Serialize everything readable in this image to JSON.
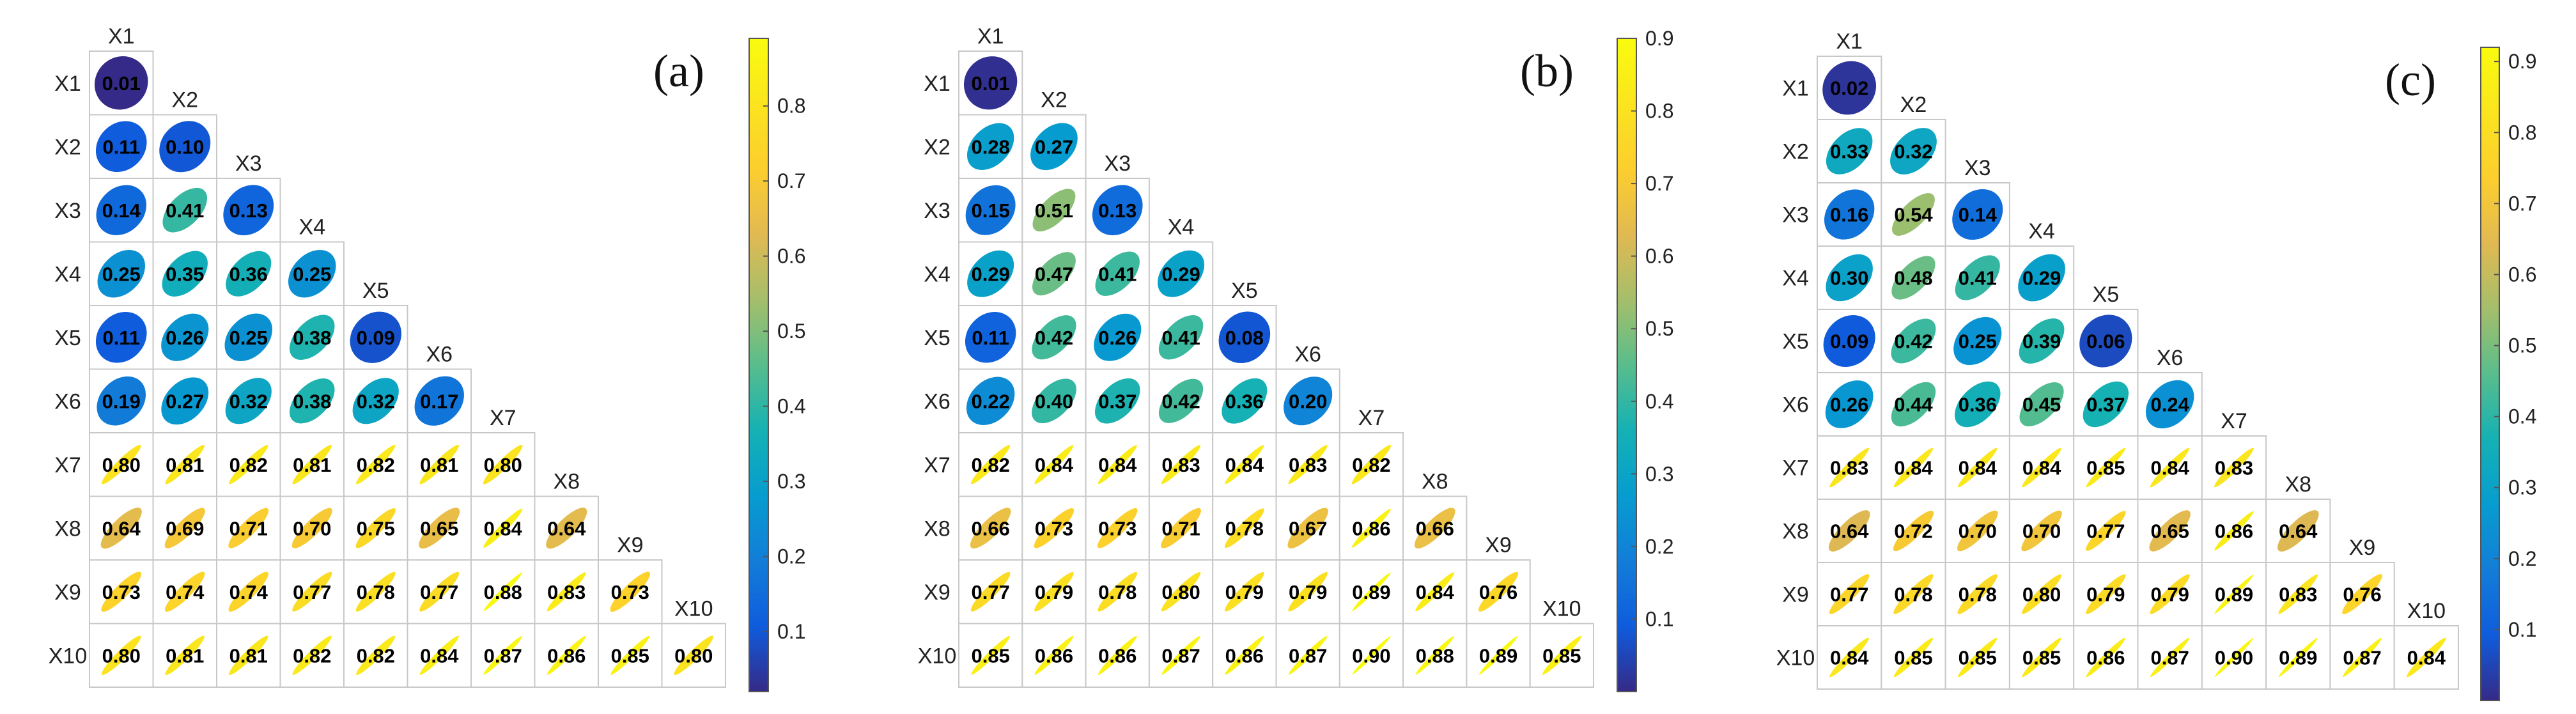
{
  "chart_data": [
    {
      "type": "heatmap",
      "subtype": "lower-triangular correlation ellipse matrix",
      "panel_label": "(a)",
      "variables": [
        "X1",
        "X2",
        "X3",
        "X4",
        "X5",
        "X6",
        "X7",
        "X8",
        "X9",
        "X10"
      ],
      "values": [
        [
          0.01
        ],
        [
          0.11,
          0.1
        ],
        [
          0.14,
          0.41,
          0.13
        ],
        [
          0.25,
          0.35,
          0.36,
          0.25
        ],
        [
          0.11,
          0.26,
          0.25,
          0.38,
          0.09
        ],
        [
          0.19,
          0.27,
          0.32,
          0.38,
          0.32,
          0.17
        ],
        [
          0.8,
          0.81,
          0.82,
          0.81,
          0.82,
          0.81,
          0.8
        ],
        [
          0.64,
          0.69,
          0.71,
          0.7,
          0.75,
          0.65,
          0.84,
          0.64
        ],
        [
          0.73,
          0.74,
          0.74,
          0.77,
          0.78,
          0.77,
          0.88,
          0.83,
          0.73
        ],
        [
          0.8,
          0.81,
          0.81,
          0.82,
          0.82,
          0.84,
          0.87,
          0.86,
          0.85,
          0.8
        ]
      ],
      "values_text": [
        [
          "0.01"
        ],
        [
          "0.11",
          "0.10"
        ],
        [
          "0.14",
          "0.41",
          "0.13"
        ],
        [
          "0.25",
          "0.35",
          "0.36",
          "0.25"
        ],
        [
          "0.11",
          "0.26",
          "0.25",
          "0.38",
          "0.09"
        ],
        [
          "0.19",
          "0.27",
          "0.32",
          "0.38",
          "0.32",
          "0.17"
        ],
        [
          "0.80",
          "0.81",
          "0.82",
          "0.81",
          "0.82",
          "0.81",
          "0.80"
        ],
        [
          "0.64",
          "0.69",
          "0.71",
          "0.70",
          "0.75",
          "0.65",
          "0.84",
          "0.64"
        ],
        [
          "0.73",
          "0.74",
          "0.74",
          "0.77",
          "0.78",
          "0.77",
          "0.88",
          "0.83",
          "0.73"
        ],
        [
          "0.80",
          "0.81",
          "0.81",
          "0.82",
          "0.82",
          "0.84",
          "0.87",
          "0.86",
          "0.85",
          "0.80"
        ]
      ],
      "colorbar": {
        "range": [
          0.02,
          0.89
        ],
        "ticks": [
          0.1,
          0.2,
          0.3,
          0.4,
          0.5,
          0.6,
          0.7,
          0.8
        ],
        "tick_labels": [
          "0.1",
          "0.2",
          "0.3",
          "0.4",
          "0.5",
          "0.6",
          "0.7",
          "0.8"
        ]
      }
    },
    {
      "type": "heatmap",
      "subtype": "lower-triangular correlation ellipse matrix",
      "panel_label": "(b)",
      "variables": [
        "X1",
        "X2",
        "X3",
        "X4",
        "X5",
        "X6",
        "X7",
        "X8",
        "X9",
        "X10"
      ],
      "values": [
        [
          0.01
        ],
        [
          0.28,
          0.27
        ],
        [
          0.15,
          0.51,
          0.13
        ],
        [
          0.29,
          0.47,
          0.41,
          0.29
        ],
        [
          0.11,
          0.42,
          0.26,
          0.41,
          0.08
        ],
        [
          0.22,
          0.4,
          0.37,
          0.42,
          0.36,
          0.2
        ],
        [
          0.82,
          0.84,
          0.84,
          0.83,
          0.84,
          0.83,
          0.82
        ],
        [
          0.66,
          0.73,
          0.73,
          0.71,
          0.78,
          0.67,
          0.86,
          0.66
        ],
        [
          0.77,
          0.79,
          0.78,
          0.8,
          0.79,
          0.79,
          0.89,
          0.84,
          0.76
        ],
        [
          0.85,
          0.86,
          0.86,
          0.87,
          0.86,
          0.87,
          0.9,
          0.88,
          0.89,
          0.85
        ]
      ],
      "values_text": [
        [
          "0.01"
        ],
        [
          "0.28",
          "0.27"
        ],
        [
          "0.15",
          "0.51",
          "0.13"
        ],
        [
          "0.29",
          "0.47",
          "0.41",
          "0.29"
        ],
        [
          "0.11",
          "0.42",
          "0.26",
          "0.41",
          "0.08"
        ],
        [
          "0.22",
          "0.40",
          "0.37",
          "0.42",
          "0.36",
          "0.20"
        ],
        [
          "0.82",
          "0.84",
          "0.84",
          "0.83",
          "0.84",
          "0.83",
          "0.82"
        ],
        [
          "0.66",
          "0.73",
          "0.73",
          "0.71",
          "0.78",
          "0.67",
          "0.86",
          "0.66"
        ],
        [
          "0.77",
          "0.79",
          "0.78",
          "0.80",
          "0.79",
          "0.79",
          "0.89",
          "0.84",
          "0.76"
        ],
        [
          "0.85",
          "0.86",
          "0.86",
          "0.87",
          "0.86",
          "0.87",
          "0.90",
          "0.88",
          "0.89",
          "0.85"
        ]
      ],
      "colorbar": {
        "range": [
          0.0,
          0.9
        ],
        "ticks": [
          0.1,
          0.2,
          0.3,
          0.4,
          0.5,
          0.6,
          0.7,
          0.8,
          0.9
        ],
        "tick_labels": [
          "0.1",
          "0.2",
          "0.3",
          "0.4",
          "0.5",
          "0.6",
          "0.7",
          "0.8",
          "0.9"
        ]
      }
    },
    {
      "type": "heatmap",
      "subtype": "lower-triangular correlation ellipse matrix",
      "panel_label": "(c)",
      "variables": [
        "X1",
        "X2",
        "X3",
        "X4",
        "X5",
        "X6",
        "X7",
        "X8",
        "X9",
        "X10"
      ],
      "values": [
        [
          0.02
        ],
        [
          0.33,
          0.32
        ],
        [
          0.16,
          0.54,
          0.14
        ],
        [
          0.3,
          0.48,
          0.41,
          0.29
        ],
        [
          0.09,
          0.42,
          0.25,
          0.39,
          0.06
        ],
        [
          0.26,
          0.44,
          0.36,
          0.45,
          0.37,
          0.24
        ],
        [
          0.83,
          0.84,
          0.84,
          0.84,
          0.85,
          0.84,
          0.83
        ],
        [
          0.64,
          0.72,
          0.7,
          0.7,
          0.77,
          0.65,
          0.86,
          0.64
        ],
        [
          0.77,
          0.78,
          0.78,
          0.8,
          0.79,
          0.79,
          0.89,
          0.83,
          0.76
        ],
        [
          0.84,
          0.85,
          0.85,
          0.85,
          0.86,
          0.87,
          0.9,
          0.89,
          0.87,
          0.84
        ]
      ],
      "values_text": [
        [
          "0.02"
        ],
        [
          "0.33",
          "0.32"
        ],
        [
          "0.16",
          "0.54",
          "0.14"
        ],
        [
          "0.30",
          "0.48",
          "0.41",
          "0.29"
        ],
        [
          "0.09",
          "0.42",
          "0.25",
          "0.39",
          "0.06"
        ],
        [
          "0.26",
          "0.44",
          "0.36",
          "0.45",
          "0.37",
          "0.24"
        ],
        [
          "0.83",
          "0.84",
          "0.84",
          "0.84",
          "0.85",
          "0.84",
          "0.83"
        ],
        [
          "0.64",
          "0.72",
          "0.70",
          "0.70",
          "0.77",
          "0.65",
          "0.86",
          "0.64"
        ],
        [
          "0.77",
          "0.78",
          "0.78",
          "0.80",
          "0.79",
          "0.79",
          "0.89",
          "0.83",
          "0.76"
        ],
        [
          "0.84",
          "0.85",
          "0.85",
          "0.85",
          "0.86",
          "0.87",
          "0.90",
          "0.89",
          "0.87",
          "0.84"
        ]
      ],
      "colorbar": {
        "range": [
          0.0,
          0.92
        ],
        "ticks": [
          0.1,
          0.2,
          0.3,
          0.4,
          0.5,
          0.6,
          0.7,
          0.8,
          0.9
        ],
        "tick_labels": [
          "0.1",
          "0.2",
          "0.3",
          "0.4",
          "0.5",
          "0.6",
          "0.7",
          "0.8",
          "0.9"
        ]
      }
    }
  ],
  "colormap": "parula",
  "colors": {
    "cell_border": "#c8c8c8",
    "colorbar_border": "#555555",
    "ellipse_outline": "#ffffff"
  }
}
